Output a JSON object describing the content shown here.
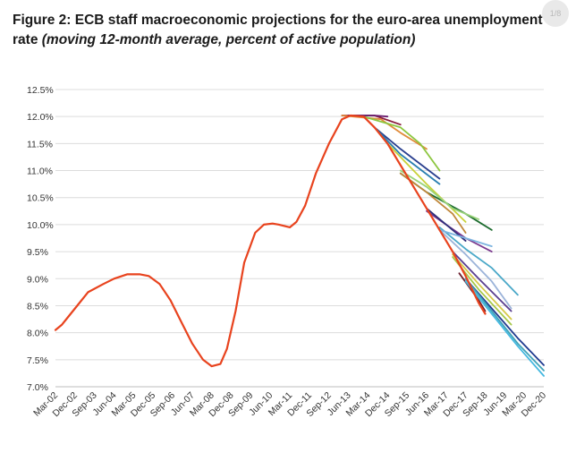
{
  "page": {
    "title_main": "Figure 2: ECB staff macroeconomic projections for the euro-area unemployment rate",
    "title_sub": "(moving 12-month average, percent of active population)",
    "badge_text": "1/8"
  },
  "chart_data": {
    "type": "line",
    "title": "Figure 2: ECB staff macroeconomic projections for the euro-area unemployment rate",
    "subtitle": "(moving 12-month average, percent of active population)",
    "xlabel": "",
    "ylabel": "",
    "ylim": [
      7.0,
      12.5
    ],
    "xlim": [
      "2002-03",
      "2020-12"
    ],
    "grid": "horizontal",
    "legend": "none",
    "y_ticks": [
      "7.0%",
      "7.5%",
      "8.0%",
      "8.5%",
      "9.0%",
      "9.5%",
      "10.0%",
      "10.5%",
      "11.0%",
      "11.5%",
      "12.0%",
      "12.5%"
    ],
    "x_ticks": [
      "Mar-02",
      "Dec-02",
      "Sep-03",
      "Jun-04",
      "Mar-05",
      "Dec-05",
      "Sep-06",
      "Jun-07",
      "Mar-08",
      "Dec-08",
      "Sep-09",
      "Jun-10",
      "Mar-11",
      "Dec-11",
      "Sep-12",
      "Jun-13",
      "Mar-14",
      "Dec-14",
      "Sep-15",
      "Jun-16",
      "Mar-17",
      "Dec-17",
      "Sep-18",
      "Jun-19",
      "Mar-20",
      "Dec-20"
    ],
    "series": [
      {
        "color": "#e8431e",
        "points": [
          [
            "2002-03",
            8.05
          ],
          [
            "2002-06",
            8.15
          ],
          [
            "2002-09",
            8.3
          ],
          [
            "2003-01",
            8.5
          ],
          [
            "2003-06",
            8.75
          ],
          [
            "2004-01",
            8.9
          ],
          [
            "2004-06",
            9.0
          ],
          [
            "2004-12",
            9.08
          ],
          [
            "2005-06",
            9.08
          ],
          [
            "2005-10",
            9.05
          ],
          [
            "2006-03",
            8.9
          ],
          [
            "2006-08",
            8.6
          ],
          [
            "2007-01",
            8.2
          ],
          [
            "2007-06",
            7.8
          ],
          [
            "2007-11",
            7.5
          ],
          [
            "2008-03",
            7.38
          ],
          [
            "2008-07",
            7.42
          ],
          [
            "2008-10",
            7.7
          ],
          [
            "2009-02",
            8.4
          ],
          [
            "2009-06",
            9.3
          ],
          [
            "2009-11",
            9.85
          ],
          [
            "2010-03",
            10.0
          ],
          [
            "2010-07",
            10.02
          ],
          [
            "2010-10",
            10.0
          ],
          [
            "2011-03",
            9.95
          ],
          [
            "2011-06",
            10.05
          ],
          [
            "2011-10",
            10.35
          ],
          [
            "2012-03",
            10.95
          ],
          [
            "2012-09",
            11.5
          ],
          [
            "2013-03",
            11.95
          ],
          [
            "2013-07",
            12.02
          ],
          [
            "2014-01",
            12.0
          ],
          [
            "2014-06",
            11.8
          ],
          [
            "2014-12",
            11.5
          ],
          [
            "2015-06",
            11.1
          ],
          [
            "2015-12",
            10.7
          ],
          [
            "2016-06",
            10.3
          ],
          [
            "2016-12",
            9.9
          ],
          [
            "2017-06",
            9.5
          ],
          [
            "2017-12",
            9.05
          ],
          [
            "2018-06",
            8.55
          ],
          [
            "2018-09",
            8.35
          ]
        ]
      },
      {
        "color": "#8b1e3f",
        "points": [
          [
            "2013-03",
            12.02
          ],
          [
            "2014-06",
            12.02
          ],
          [
            "2015-06",
            11.85
          ]
        ]
      },
      {
        "color": "#e08b3a",
        "points": [
          [
            "2013-03",
            12.02
          ],
          [
            "2014-09",
            11.95
          ],
          [
            "2015-06",
            11.7
          ],
          [
            "2016-06",
            11.4
          ]
        ]
      },
      {
        "color": "#8cc63f",
        "points": [
          [
            "2014-01",
            12.0
          ],
          [
            "2015-06",
            11.8
          ],
          [
            "2016-03",
            11.5
          ],
          [
            "2016-12",
            11.0
          ]
        ]
      },
      {
        "color": "#6a1e6f",
        "points": [
          [
            "2013-06",
            12.02
          ],
          [
            "2014-06",
            12.02
          ],
          [
            "2014-12",
            12.0
          ]
        ]
      },
      {
        "color": "#2a3f8f",
        "points": [
          [
            "2014-06",
            11.8
          ],
          [
            "2015-06",
            11.4
          ],
          [
            "2016-12",
            10.85
          ]
        ]
      },
      {
        "color": "#2a7fb0",
        "points": [
          [
            "2014-06",
            11.8
          ],
          [
            "2015-06",
            11.3
          ],
          [
            "2016-12",
            10.75
          ]
        ]
      },
      {
        "color": "#c8d23a",
        "points": [
          [
            "2014-12",
            11.5
          ],
          [
            "2015-12",
            11.0
          ],
          [
            "2016-06",
            10.75
          ],
          [
            "2017-12",
            10.05
          ]
        ]
      },
      {
        "color": "#1c6b2e",
        "points": [
          [
            "2015-06",
            10.95
          ],
          [
            "2016-06",
            10.6
          ],
          [
            "2017-12",
            10.2
          ],
          [
            "2018-12",
            9.9
          ]
        ]
      },
      {
        "color": "#9ad37a",
        "points": [
          [
            "2015-06",
            11.0
          ],
          [
            "2016-06",
            10.7
          ],
          [
            "2017-06",
            10.3
          ],
          [
            "2018-06",
            10.1
          ]
        ]
      },
      {
        "color": "#c0873a",
        "points": [
          [
            "2015-06",
            10.95
          ],
          [
            "2016-06",
            10.6
          ],
          [
            "2017-06",
            10.2
          ],
          [
            "2017-12",
            9.85
          ]
        ]
      },
      {
        "color": "#7b3a8f",
        "points": [
          [
            "2016-06",
            10.25
          ],
          [
            "2017-12",
            9.75
          ],
          [
            "2018-12",
            9.5
          ]
        ]
      },
      {
        "color": "#2e2e7a",
        "points": [
          [
            "2016-06",
            10.3
          ],
          [
            "2017-06",
            9.9
          ],
          [
            "2017-12",
            9.7
          ]
        ]
      },
      {
        "color": "#4aa8c8",
        "points": [
          [
            "2016-12",
            9.95
          ],
          [
            "2017-12",
            9.55
          ],
          [
            "2018-12",
            9.2
          ],
          [
            "2019-12",
            8.7
          ]
        ]
      },
      {
        "color": "#7db4e0",
        "points": [
          [
            "2016-12",
            9.9
          ],
          [
            "2017-12",
            9.75
          ],
          [
            "2018-12",
            9.6
          ]
        ]
      },
      {
        "color": "#9bb3d9",
        "points": [
          [
            "2016-12",
            9.9
          ],
          [
            "2017-12",
            9.45
          ],
          [
            "2018-12",
            8.95
          ],
          [
            "2019-09",
            8.45
          ]
        ]
      },
      {
        "color": "#5a3f8f",
        "points": [
          [
            "2017-06",
            9.5
          ],
          [
            "2018-06",
            9.0
          ],
          [
            "2019-09",
            8.4
          ]
        ]
      },
      {
        "color": "#d6c94a",
        "points": [
          [
            "2017-06",
            9.45
          ],
          [
            "2018-06",
            8.9
          ],
          [
            "2019-09",
            8.25
          ]
        ]
      },
      {
        "color": "#a6c84a",
        "points": [
          [
            "2017-06",
            9.4
          ],
          [
            "2018-06",
            8.8
          ],
          [
            "2019-09",
            8.15
          ]
        ]
      },
      {
        "color": "#6b1f2e",
        "points": [
          [
            "2017-09",
            9.1
          ],
          [
            "2018-06",
            8.6
          ],
          [
            "2018-09",
            8.4
          ]
        ]
      },
      {
        "color": "#1f3a8f",
        "points": [
          [
            "2017-12",
            9.0
          ],
          [
            "2018-12",
            8.45
          ],
          [
            "2019-12",
            7.9
          ],
          [
            "2020-12",
            7.4
          ]
        ]
      },
      {
        "color": "#3fa3b8",
        "points": [
          [
            "2017-12",
            9.0
          ],
          [
            "2018-12",
            8.4
          ],
          [
            "2019-12",
            7.8
          ],
          [
            "2020-12",
            7.3
          ]
        ]
      },
      {
        "color": "#45b8e0",
        "points": [
          [
            "2017-12",
            8.95
          ],
          [
            "2018-12",
            8.35
          ],
          [
            "2019-12",
            7.75
          ],
          [
            "2020-12",
            7.2
          ]
        ]
      }
    ]
  }
}
